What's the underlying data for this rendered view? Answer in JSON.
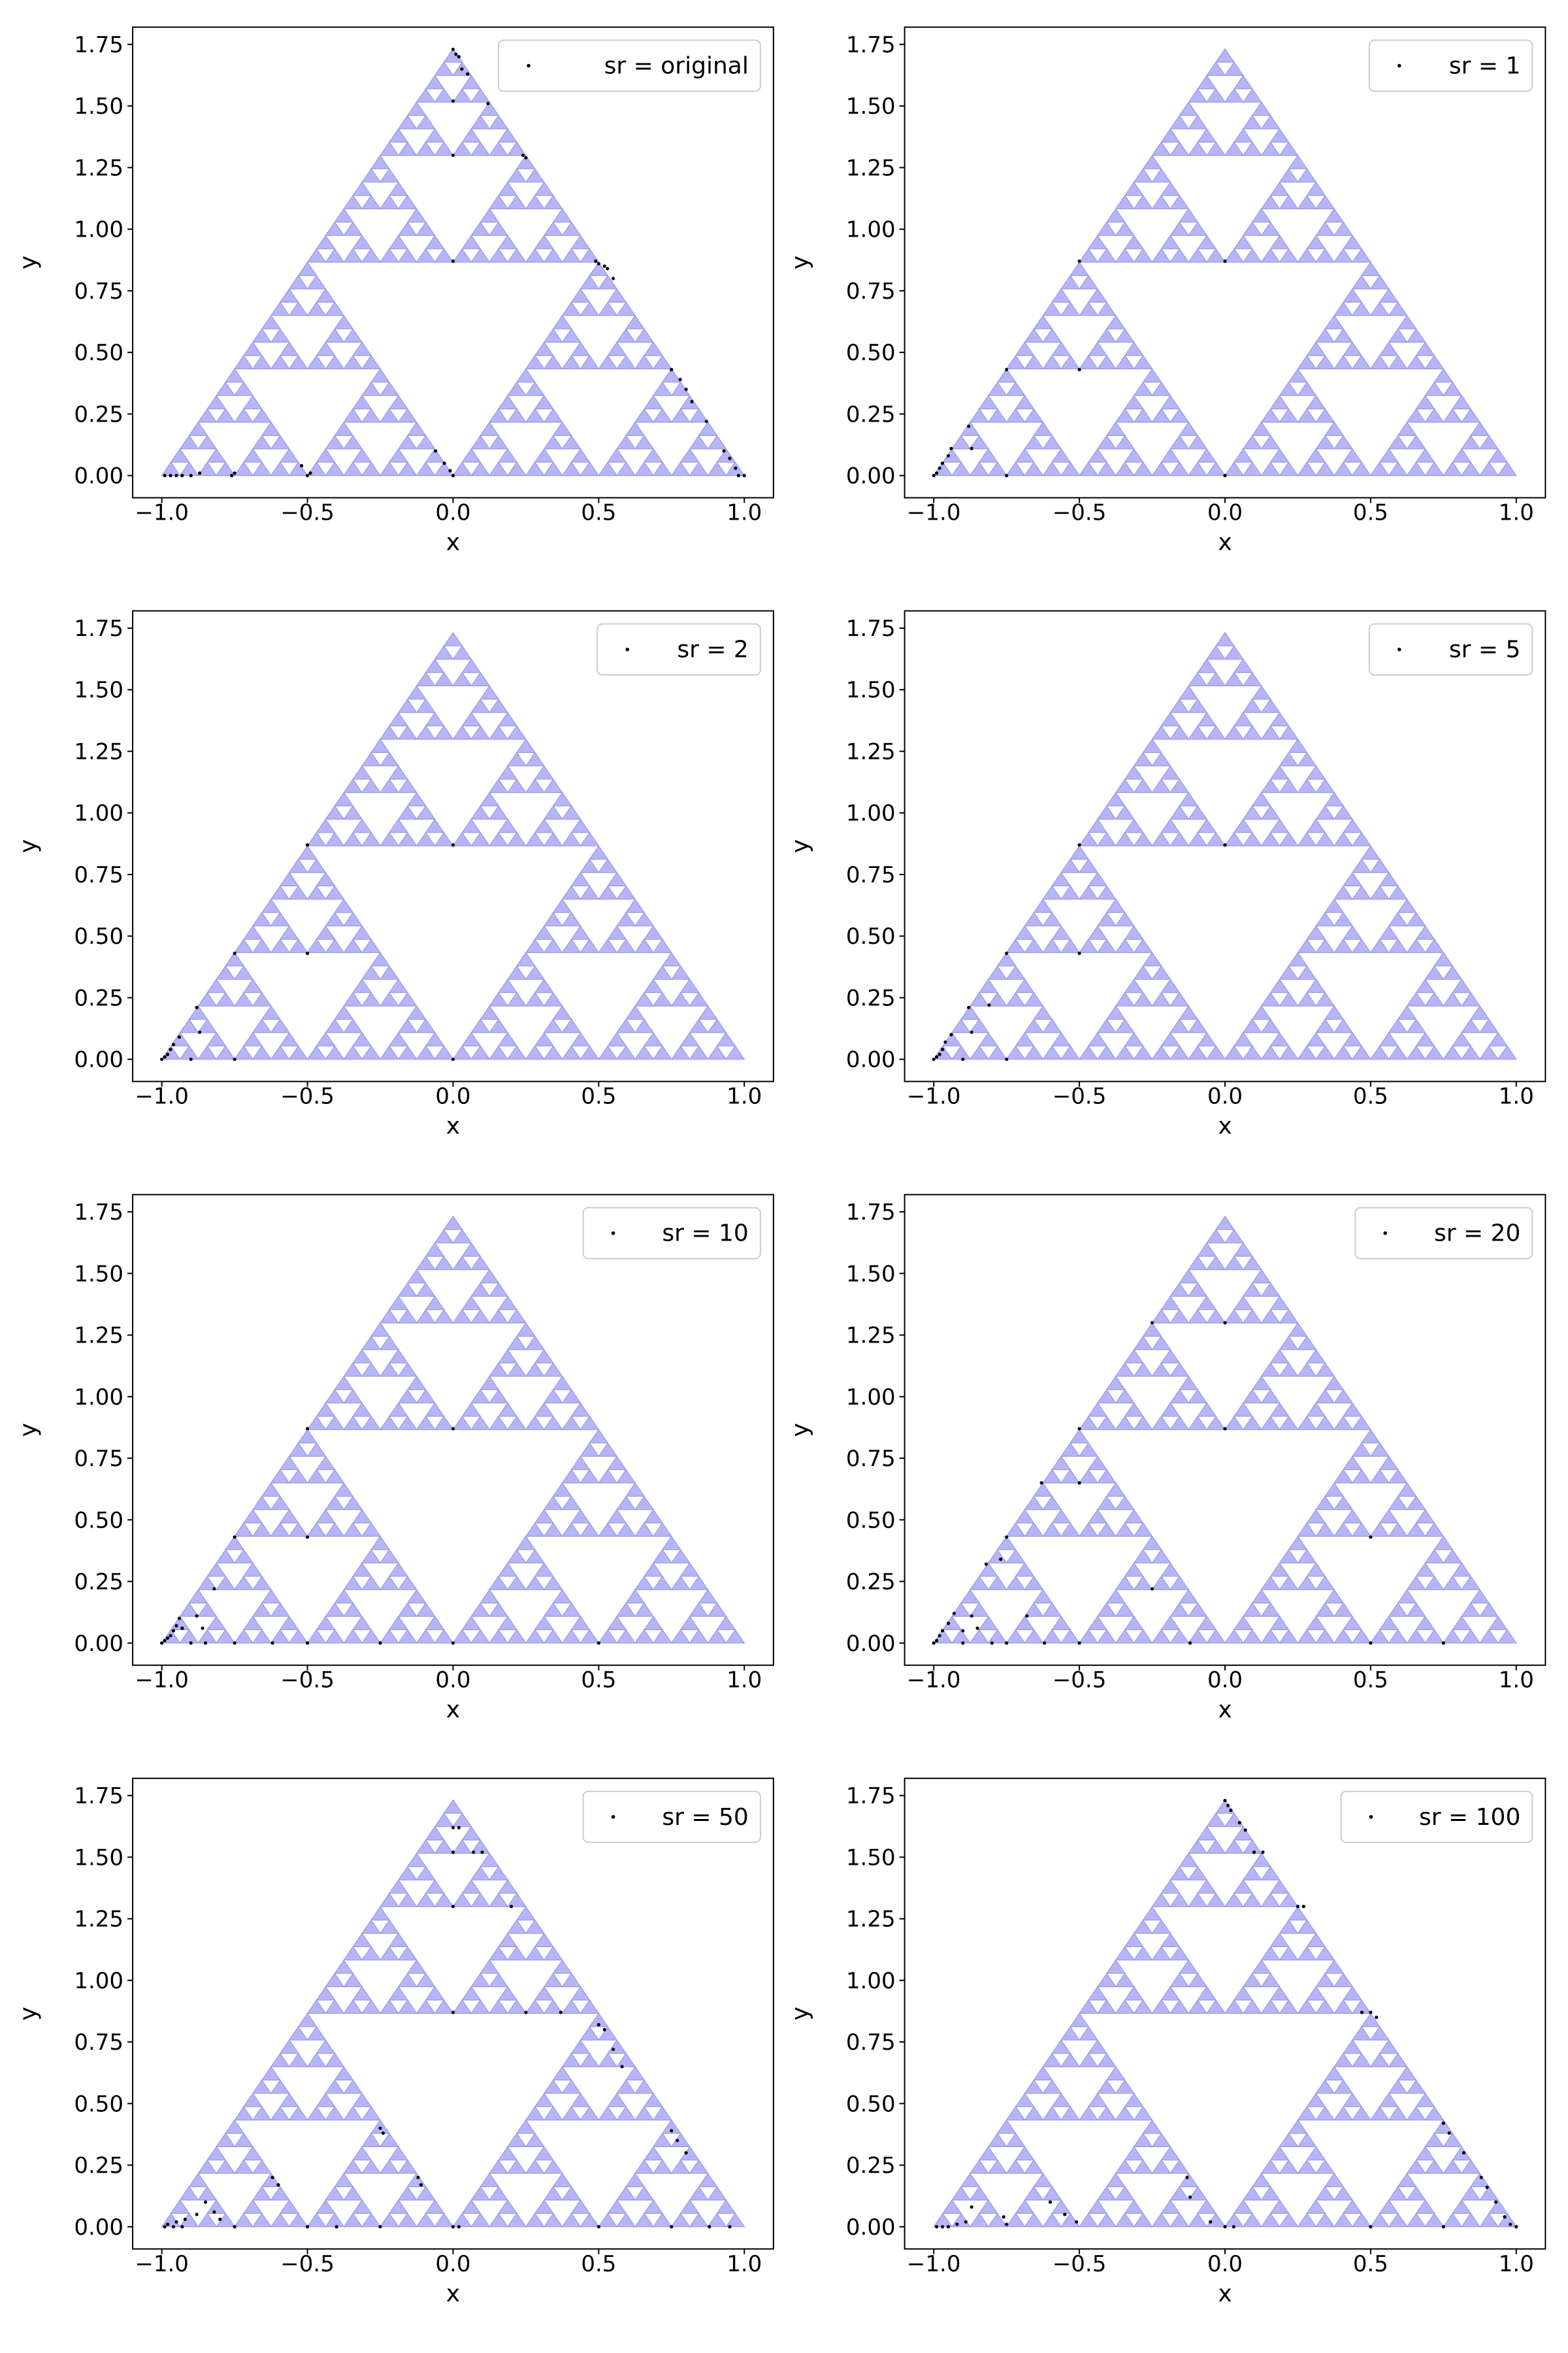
{
  "chart_data": [
    {
      "type": "scatter",
      "legend": "sr = original",
      "legend_loc": "upper right",
      "xlabel": "x",
      "ylabel": "y",
      "xlim": [
        -1.1,
        1.1
      ],
      "ylim": [
        -0.09,
        1.82
      ],
      "xticks": [
        "−1.0",
        "−0.5",
        "0.0",
        "0.5",
        "1.0"
      ],
      "yticks": [
        "0.00",
        "0.25",
        "0.50",
        "0.75",
        "1.00",
        "1.25",
        "1.50",
        "1.75"
      ],
      "grid": false,
      "background": "Sierpinski triangle with vertices (-1, 0), (1, 0), (0, 1.732)",
      "points": [
        [
          -0.99,
          0
        ],
        [
          -0.97,
          0
        ],
        [
          -0.95,
          0
        ],
        [
          -0.93,
          0
        ],
        [
          -0.9,
          0
        ],
        [
          -0.87,
          0.01
        ],
        [
          -0.76,
          0
        ],
        [
          -0.75,
          0.01
        ],
        [
          -0.52,
          0.04
        ],
        [
          -0.5,
          0
        ],
        [
          -0.49,
          0.01
        ],
        [
          -0.06,
          0.1
        ],
        [
          -0.03,
          0.05
        ],
        [
          0,
          0
        ],
        [
          -0.01,
          0.02
        ],
        [
          0,
          1.73
        ],
        [
          0.01,
          1.71
        ],
        [
          0.02,
          1.7
        ],
        [
          0.03,
          1.65
        ],
        [
          0.05,
          1.63
        ],
        [
          0,
          1.52
        ],
        [
          0.12,
          1.51
        ],
        [
          0,
          1.3
        ],
        [
          0.24,
          1.3
        ],
        [
          0.25,
          1.29
        ],
        [
          0,
          0.87
        ],
        [
          0.49,
          0.87
        ],
        [
          0.5,
          0.86
        ],
        [
          0.52,
          0.85
        ],
        [
          0.53,
          0.84
        ],
        [
          0.55,
          0.8
        ],
        [
          0.75,
          0.43
        ],
        [
          0.78,
          0.39
        ],
        [
          0.8,
          0.35
        ],
        [
          0.82,
          0.3
        ],
        [
          0.87,
          0.22
        ],
        [
          0.93,
          0.1
        ],
        [
          0.95,
          0.07
        ],
        [
          0.97,
          0.03
        ],
        [
          0.98,
          0
        ],
        [
          1,
          0
        ]
      ]
    },
    {
      "type": "scatter",
      "legend": "sr = 1",
      "legend_loc": "upper right",
      "xlabel": "x",
      "ylabel": "y",
      "xlim": [
        -1.1,
        1.1
      ],
      "ylim": [
        -0.09,
        1.82
      ],
      "xticks": [
        "−1.0",
        "−0.5",
        "0.0",
        "0.5",
        "1.0"
      ],
      "yticks": [
        "0.00",
        "0.25",
        "0.50",
        "0.75",
        "1.00",
        "1.25",
        "1.50",
        "1.75"
      ],
      "grid": false,
      "background": "Sierpinski triangle with vertices (-1, 0), (1, 0), (0, 1.732)",
      "points": [
        [
          -1,
          0
        ],
        [
          -0.99,
          0.01
        ],
        [
          -0.98,
          0.03
        ],
        [
          -0.97,
          0.05
        ],
        [
          -0.95,
          0.08
        ],
        [
          -0.94,
          0.11
        ],
        [
          -0.88,
          0.2
        ],
        [
          -0.87,
          0.11
        ],
        [
          -0.75,
          0.43
        ],
        [
          -0.5,
          0.87
        ],
        [
          -0.5,
          0.43
        ],
        [
          -0.75,
          0
        ],
        [
          0,
          0.87
        ],
        [
          0,
          0
        ]
      ]
    },
    {
      "type": "scatter",
      "legend": "sr = 2",
      "legend_loc": "upper right",
      "xlabel": "x",
      "ylabel": "y",
      "xlim": [
        -1.1,
        1.1
      ],
      "ylim": [
        -0.09,
        1.82
      ],
      "xticks": [
        "−1.0",
        "−0.5",
        "0.0",
        "0.5",
        "1.0"
      ],
      "yticks": [
        "0.00",
        "0.25",
        "0.50",
        "0.75",
        "1.00",
        "1.25",
        "1.50",
        "1.75"
      ],
      "grid": false,
      "background": "Sierpinski triangle with vertices (-1, 0), (1, 0), (0, 1.732)",
      "points": [
        [
          -1,
          0
        ],
        [
          -0.99,
          0.01
        ],
        [
          -0.98,
          0.02
        ],
        [
          -0.97,
          0.04
        ],
        [
          -0.96,
          0.06
        ],
        [
          -0.94,
          0.09
        ],
        [
          -0.88,
          0.21
        ],
        [
          -0.87,
          0.11
        ],
        [
          -0.75,
          0.43
        ],
        [
          -0.5,
          0.87
        ],
        [
          -0.5,
          0.43
        ],
        [
          -0.75,
          0
        ],
        [
          0,
          0.87
        ],
        [
          0,
          0
        ],
        [
          -0.9,
          0
        ]
      ]
    },
    {
      "type": "scatter",
      "legend": "sr = 5",
      "legend_loc": "upper right",
      "xlabel": "x",
      "ylabel": "y",
      "xlim": [
        -1.1,
        1.1
      ],
      "ylim": [
        -0.09,
        1.82
      ],
      "xticks": [
        "−1.0",
        "−0.5",
        "0.0",
        "0.5",
        "1.0"
      ],
      "yticks": [
        "0.00",
        "0.25",
        "0.50",
        "0.75",
        "1.00",
        "1.25",
        "1.50",
        "1.75"
      ],
      "grid": false,
      "background": "Sierpinski triangle with vertices (-1, 0), (1, 0), (0, 1.732)",
      "points": [
        [
          -1,
          0
        ],
        [
          -0.99,
          0.01
        ],
        [
          -0.98,
          0.02
        ],
        [
          -0.97,
          0.04
        ],
        [
          -0.96,
          0.07
        ],
        [
          -0.94,
          0.1
        ],
        [
          -0.88,
          0.21
        ],
        [
          -0.87,
          0.11
        ],
        [
          -0.81,
          0.22
        ],
        [
          -0.75,
          0.43
        ],
        [
          -0.5,
          0.87
        ],
        [
          -0.5,
          0.43
        ],
        [
          -0.75,
          0
        ],
        [
          0,
          0.87
        ],
        [
          -0.9,
          0
        ]
      ]
    },
    {
      "type": "scatter",
      "legend": "sr = 10",
      "legend_loc": "upper right",
      "xlabel": "x",
      "ylabel": "y",
      "xlim": [
        -1.1,
        1.1
      ],
      "ylim": [
        -0.09,
        1.82
      ],
      "xticks": [
        "−1.0",
        "−0.5",
        "0.0",
        "0.5",
        "1.0"
      ],
      "yticks": [
        "0.00",
        "0.25",
        "0.50",
        "0.75",
        "1.00",
        "1.25",
        "1.50",
        "1.75"
      ],
      "grid": false,
      "background": "Sierpinski triangle with vertices (-1, 0), (1, 0), (0, 1.732)",
      "points": [
        [
          -1,
          0
        ],
        [
          -0.99,
          0.01
        ],
        [
          -0.98,
          0.02
        ],
        [
          -0.97,
          0.03
        ],
        [
          -0.96,
          0.05
        ],
        [
          -0.95,
          0.07
        ],
        [
          -0.94,
          0.1
        ],
        [
          -0.93,
          0.06
        ],
        [
          -0.88,
          0.11
        ],
        [
          -0.86,
          0.06
        ],
        [
          -0.82,
          0.22
        ],
        [
          -0.75,
          0.43
        ],
        [
          -0.5,
          0.87
        ],
        [
          -0.5,
          0.43
        ],
        [
          -0.75,
          0
        ],
        [
          -0.62,
          0
        ],
        [
          -0.5,
          0
        ],
        [
          -0.25,
          0
        ],
        [
          0,
          0.87
        ],
        [
          0,
          0
        ],
        [
          0.5,
          0
        ],
        [
          -0.9,
          0
        ],
        [
          -0.85,
          0
        ]
      ]
    },
    {
      "type": "scatter",
      "legend": "sr = 20",
      "legend_loc": "upper right",
      "xlabel": "x",
      "ylabel": "y",
      "xlim": [
        -1.1,
        1.1
      ],
      "ylim": [
        -0.09,
        1.82
      ],
      "xticks": [
        "−1.0",
        "−0.5",
        "0.0",
        "0.5",
        "1.0"
      ],
      "yticks": [
        "0.00",
        "0.25",
        "0.50",
        "0.75",
        "1.00",
        "1.25",
        "1.50",
        "1.75"
      ],
      "grid": false,
      "background": "Sierpinski triangle with vertices (-1, 0), (1, 0), (0, 1.732)",
      "points": [
        [
          -1,
          0
        ],
        [
          -0.99,
          0.01
        ],
        [
          -0.98,
          0.03
        ],
        [
          -0.97,
          0.05
        ],
        [
          -0.95,
          0.08
        ],
        [
          -0.93,
          0.12
        ],
        [
          -0.9,
          0.05
        ],
        [
          -0.87,
          0.11
        ],
        [
          -0.85,
          0.06
        ],
        [
          -0.82,
          0.32
        ],
        [
          -0.77,
          0.34
        ],
        [
          -0.75,
          0.43
        ],
        [
          -0.68,
          0.11
        ],
        [
          -0.63,
          0.65
        ],
        [
          -0.5,
          0.87
        ],
        [
          -0.5,
          0.65
        ],
        [
          -0.25,
          1.3
        ],
        [
          0,
          1.3
        ],
        [
          0,
          0.87
        ],
        [
          -0.25,
          0.22
        ],
        [
          -0.12,
          0
        ],
        [
          0.5,
          0.43
        ],
        [
          0.5,
          0
        ],
        [
          0.75,
          0
        ],
        [
          -0.75,
          0
        ],
        [
          -0.62,
          0
        ],
        [
          -0.5,
          0
        ],
        [
          -0.9,
          0
        ],
        [
          -0.8,
          0
        ]
      ]
    },
    {
      "type": "scatter",
      "legend": "sr = 50",
      "legend_loc": "upper right",
      "xlabel": "x",
      "ylabel": "y",
      "xlim": [
        -1.1,
        1.1
      ],
      "ylim": [
        -0.09,
        1.82
      ],
      "xticks": [
        "−1.0",
        "−0.5",
        "0.0",
        "0.5",
        "1.0"
      ],
      "yticks": [
        "0.00",
        "0.25",
        "0.50",
        "0.75",
        "1.00",
        "1.25",
        "1.50",
        "1.75"
      ],
      "grid": false,
      "background": "Sierpinski triangle with vertices (-1, 0), (1, 0), (0, 1.732)",
      "points": [
        [
          -0.99,
          0
        ],
        [
          -0.98,
          0.01
        ],
        [
          -0.96,
          0
        ],
        [
          -0.95,
          0.02
        ],
        [
          -0.93,
          0
        ],
        [
          -0.92,
          0.03
        ],
        [
          -0.88,
          0.05
        ],
        [
          -0.85,
          0.1
        ],
        [
          -0.82,
          0.06
        ],
        [
          -0.8,
          0.03
        ],
        [
          -0.75,
          0
        ],
        [
          -0.62,
          0.2
        ],
        [
          -0.6,
          0.17
        ],
        [
          -0.5,
          0
        ],
        [
          -0.25,
          0.4
        ],
        [
          -0.24,
          0.38
        ],
        [
          -0.12,
          0.2
        ],
        [
          -0.11,
          0.17
        ],
        [
          0,
          0
        ],
        [
          0.02,
          0
        ],
        [
          0,
          1.62
        ],
        [
          0.02,
          1.62
        ],
        [
          0,
          1.52
        ],
        [
          0.07,
          1.52
        ],
        [
          0.1,
          1.52
        ],
        [
          0,
          1.3
        ],
        [
          0.2,
          1.3
        ],
        [
          0,
          0.87
        ],
        [
          0.25,
          0.87
        ],
        [
          0.37,
          0.87
        ],
        [
          0.5,
          0.82
        ],
        [
          0.52,
          0.8
        ],
        [
          0.55,
          0.72
        ],
        [
          0.58,
          0.65
        ],
        [
          0.75,
          0.39
        ],
        [
          0.77,
          0.35
        ],
        [
          0.8,
          0.3
        ],
        [
          0.5,
          0
        ],
        [
          0.75,
          0
        ],
        [
          0.88,
          0
        ],
        [
          0.95,
          0
        ],
        [
          -0.4,
          0
        ],
        [
          -0.25,
          0
        ]
      ]
    },
    {
      "type": "scatter",
      "legend": "sr = 100",
      "legend_loc": "upper right",
      "xlabel": "x",
      "ylabel": "y",
      "xlim": [
        -1.1,
        1.1
      ],
      "ylim": [
        -0.09,
        1.82
      ],
      "xticks": [
        "−1.0",
        "−0.5",
        "0.0",
        "0.5",
        "1.0"
      ],
      "yticks": [
        "0.00",
        "0.25",
        "0.50",
        "0.75",
        "1.00",
        "1.25",
        "1.50",
        "1.75"
      ],
      "grid": false,
      "background": "Sierpinski triangle with vertices (-1, 0), (1, 0), (0, 1.732)",
      "points": [
        [
          -0.99,
          0
        ],
        [
          -0.97,
          0
        ],
        [
          -0.95,
          0
        ],
        [
          -0.92,
          0.01
        ],
        [
          -0.89,
          0.02
        ],
        [
          -0.87,
          0.08
        ],
        [
          -0.76,
          0.04
        ],
        [
          -0.75,
          0.01
        ],
        [
          -0.6,
          0.1
        ],
        [
          -0.55,
          0.05
        ],
        [
          -0.51,
          0.02
        ],
        [
          -0.13,
          0.2
        ],
        [
          -0.12,
          0.12
        ],
        [
          -0.05,
          0.02
        ],
        [
          0,
          0
        ],
        [
          0.03,
          0
        ],
        [
          0,
          1.73
        ],
        [
          0.01,
          1.71
        ],
        [
          0.02,
          1.69
        ],
        [
          0.05,
          1.64
        ],
        [
          0.07,
          1.61
        ],
        [
          0.1,
          1.52
        ],
        [
          0.13,
          1.52
        ],
        [
          0.25,
          1.3
        ],
        [
          0.27,
          1.3
        ],
        [
          0.47,
          0.87
        ],
        [
          0.5,
          0.87
        ],
        [
          0.52,
          0.85
        ],
        [
          0.75,
          0.42
        ],
        [
          0.77,
          0.38
        ],
        [
          0.82,
          0.3
        ],
        [
          0.88,
          0.2
        ],
        [
          0.9,
          0.16
        ],
        [
          0.93,
          0.1
        ],
        [
          0.96,
          0.04
        ],
        [
          0.98,
          0.01
        ],
        [
          1,
          0
        ],
        [
          0.5,
          0
        ],
        [
          0.75,
          0
        ]
      ]
    }
  ]
}
